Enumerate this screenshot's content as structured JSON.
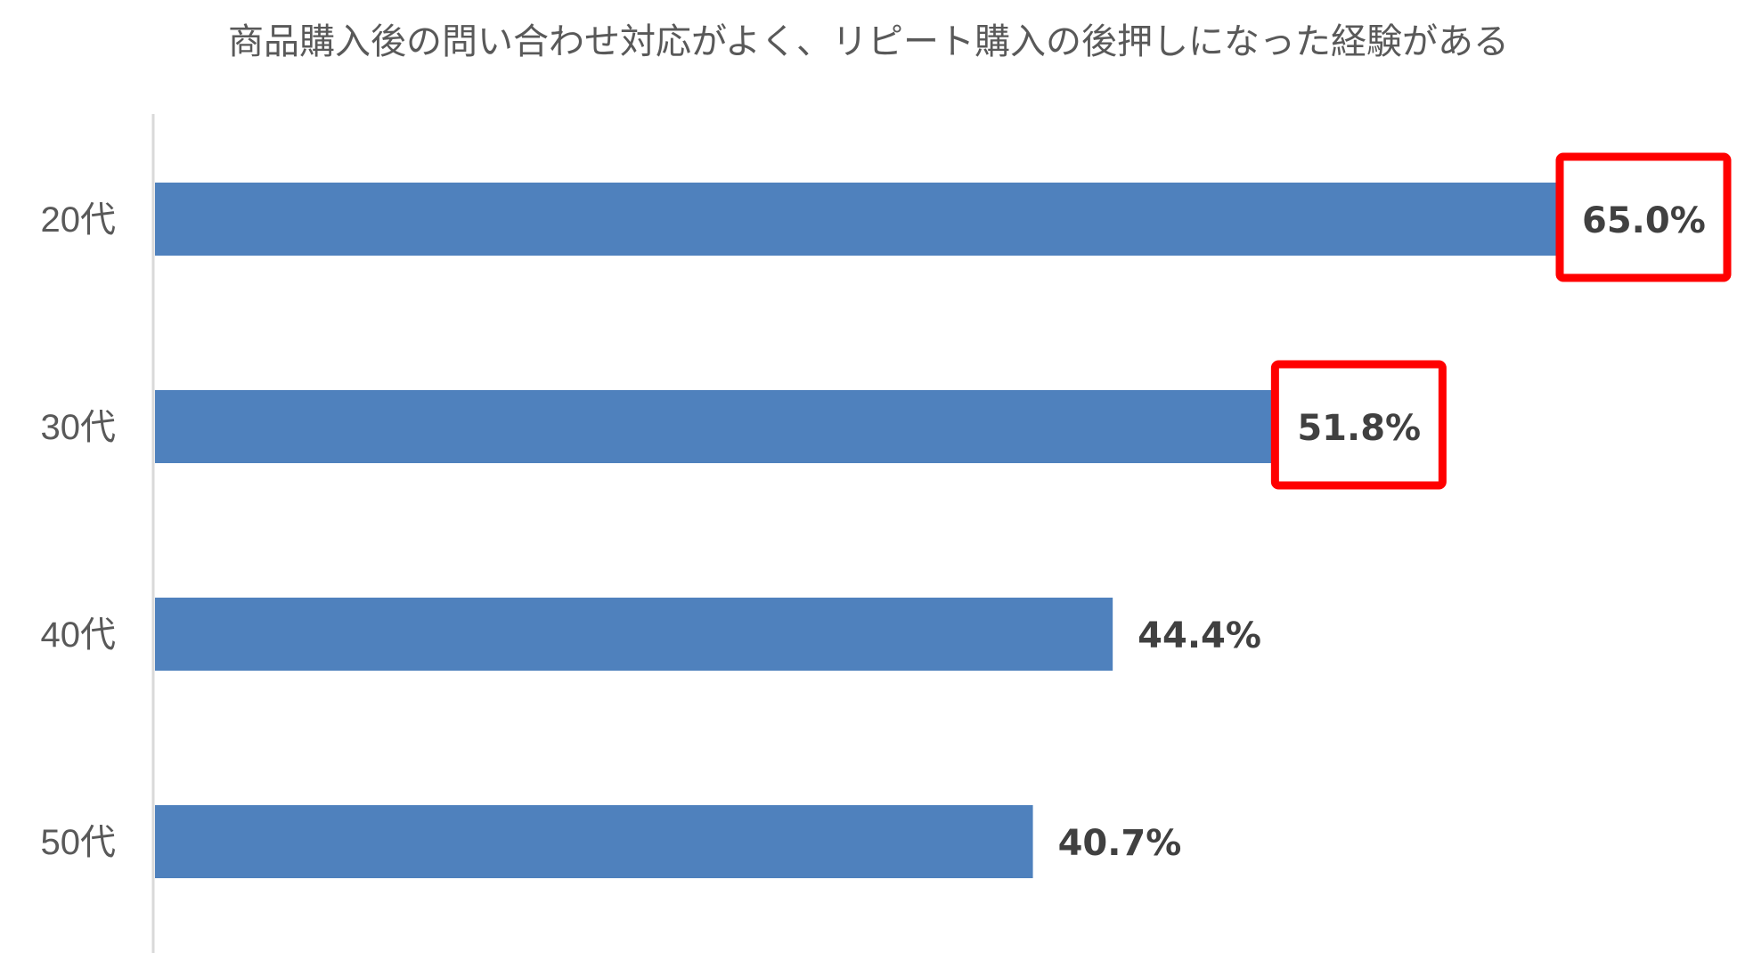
{
  "chart_data": {
    "type": "bar",
    "orientation": "horizontal",
    "title": "商品購入後の問い合わせ対応がよく、リピート購入の後押しになった経験がある",
    "categories": [
      "20代",
      "30代",
      "40代",
      "50代"
    ],
    "values": [
      65.0,
      51.8,
      44.4,
      40.7
    ],
    "value_labels": [
      "65.0%",
      "51.8%",
      "44.4%",
      "40.7%"
    ],
    "highlighted": [
      true,
      true,
      false,
      false
    ],
    "xlim": [
      0,
      65.0
    ],
    "xlabel": "",
    "ylabel": "",
    "grid": false,
    "legend": "none",
    "colors": {
      "bar": "#4F81BD",
      "highlight_box": "#FF0000",
      "axis": "#D9D9D9",
      "label_text": "#404040",
      "category_text": "#595959"
    }
  }
}
